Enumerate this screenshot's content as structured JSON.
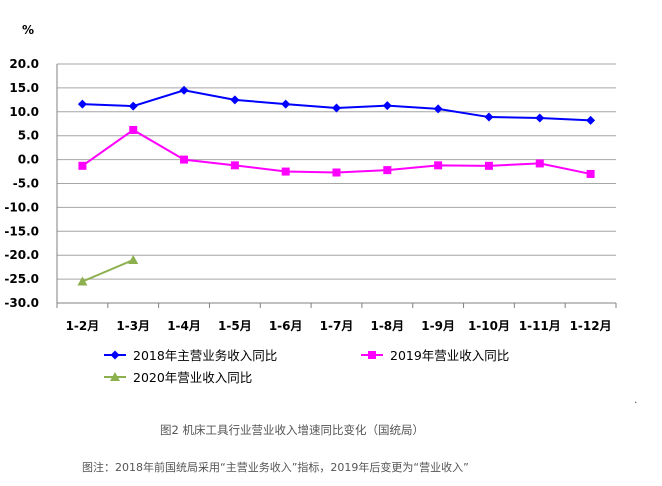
{
  "chart_data": {
    "type": "line",
    "unit_label": "%",
    "categories": [
      "1-2月",
      "1-3月",
      "1-4月",
      "1-5月",
      "1-6月",
      "1-7月",
      "1-8月",
      "1-9月",
      "1-10月",
      "1-11月",
      "1-12月"
    ],
    "ylim": [
      -30,
      20
    ],
    "yticks": [
      "20.0",
      "15.0",
      "10.0",
      "5.0",
      "0.0",
      "-5.0",
      "-10.0",
      "-15.0",
      "-20.0",
      "-25.0",
      "-30.0"
    ],
    "grid": true,
    "series": [
      {
        "name": "2018年主营业务收入同比",
        "color": "#0000ff",
        "marker": "diamond",
        "values": [
          11.6,
          11.2,
          14.5,
          12.5,
          11.6,
          10.8,
          11.3,
          10.6,
          8.9,
          8.7,
          8.2
        ]
      },
      {
        "name": "2019年营业收入同比",
        "color": "#ff00ff",
        "marker": "square",
        "values": [
          -1.3,
          6.2,
          0.0,
          -1.2,
          -2.5,
          -2.7,
          -2.2,
          -1.2,
          -1.3,
          -0.8,
          -3.0
        ]
      },
      {
        "name": "2020年营业收入同比",
        "color": "#8db04f",
        "marker": "triangle",
        "values": [
          -25.5,
          -21.0,
          null,
          null,
          null,
          null,
          null,
          null,
          null,
          null,
          null
        ]
      }
    ]
  },
  "caption": "图2    机床工具行业营业收入增速同比变化（国统局）",
  "note": "图注：2018年前国统局采用“主营业务收入”指标，2019年后变更为“营业收入”",
  "stray_mark": "."
}
